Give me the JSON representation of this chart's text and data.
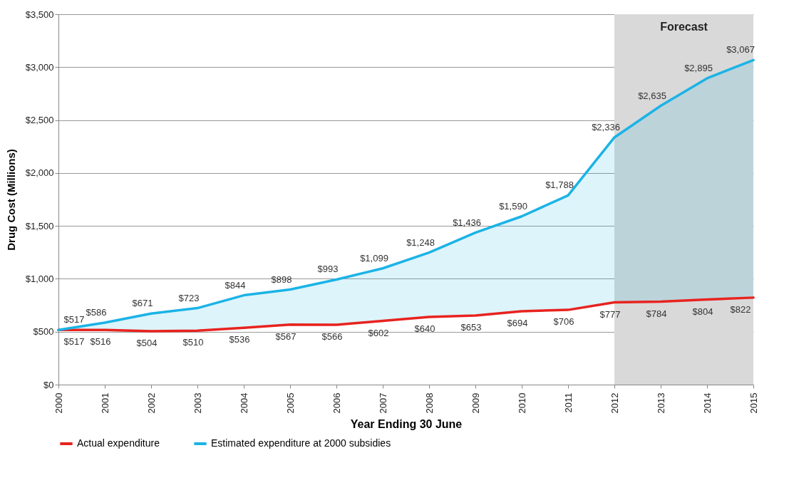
{
  "chart_data": {
    "type": "line",
    "xlabel": "Year Ending 30 June",
    "ylabel": "Drug Cost (Millions)",
    "x": [
      2000,
      2001,
      2002,
      2003,
      2004,
      2005,
      2006,
      2007,
      2008,
      2009,
      2010,
      2011,
      2012,
      2013,
      2014,
      2015
    ],
    "series": [
      {
        "name": "Actual expenditure",
        "color": "#e8231f",
        "values": [
          517,
          516,
          504,
          510,
          536,
          567,
          566,
          602,
          640,
          653,
          694,
          706,
          777,
          784,
          804,
          822
        ],
        "value_labels": [
          "$517",
          "$516",
          "$504",
          "$510",
          "$536",
          "$567",
          "$566",
          "$602",
          "$640",
          "$653",
          "$694",
          "$706",
          "$777",
          "$784",
          "$804",
          "$822"
        ]
      },
      {
        "name": "Estimated expenditure at 2000 subsidies",
        "type": "area",
        "color": "#1bb3e6",
        "values": [
          517,
          586,
          671,
          723,
          844,
          898,
          993,
          1099,
          1248,
          1436,
          1590,
          1788,
          2336,
          2635,
          2895,
          3067
        ],
        "value_labels": [
          "$517",
          "$586",
          "$671",
          "$723",
          "$844",
          "$898",
          "$993",
          "$1,099",
          "$1,248",
          "$1,436",
          "$1,590",
          "$1,788",
          "$2,336",
          "$2,635",
          "$2,895",
          "$3,067"
        ]
      }
    ],
    "xlim": [
      2000,
      2015
    ],
    "xticks": [
      2000,
      2001,
      2002,
      2003,
      2004,
      2005,
      2006,
      2007,
      2008,
      2009,
      2010,
      2011,
      2012,
      2013,
      2014,
      2015
    ],
    "ylim": [
      0,
      3500
    ],
    "yticks": [
      {
        "value": 0,
        "label": "$0"
      },
      {
        "value": 500,
        "label": "$500"
      },
      {
        "value": 1000,
        "label": "$1,000"
      },
      {
        "value": 1500,
        "label": "$1,500"
      },
      {
        "value": 2000,
        "label": "$2,000"
      },
      {
        "value": 2500,
        "label": "$2,500"
      },
      {
        "value": 3000,
        "label": "$3,000"
      },
      {
        "value": 3500,
        "label": "$3,500"
      }
    ],
    "bands": [
      {
        "axis": "x",
        "from": 2012,
        "to": 2015,
        "label": "Forecast",
        "color": "#d9d9d9"
      }
    ],
    "grid": "y",
    "legend": "bottom",
    "marker": "none",
    "line_style": "solid"
  }
}
